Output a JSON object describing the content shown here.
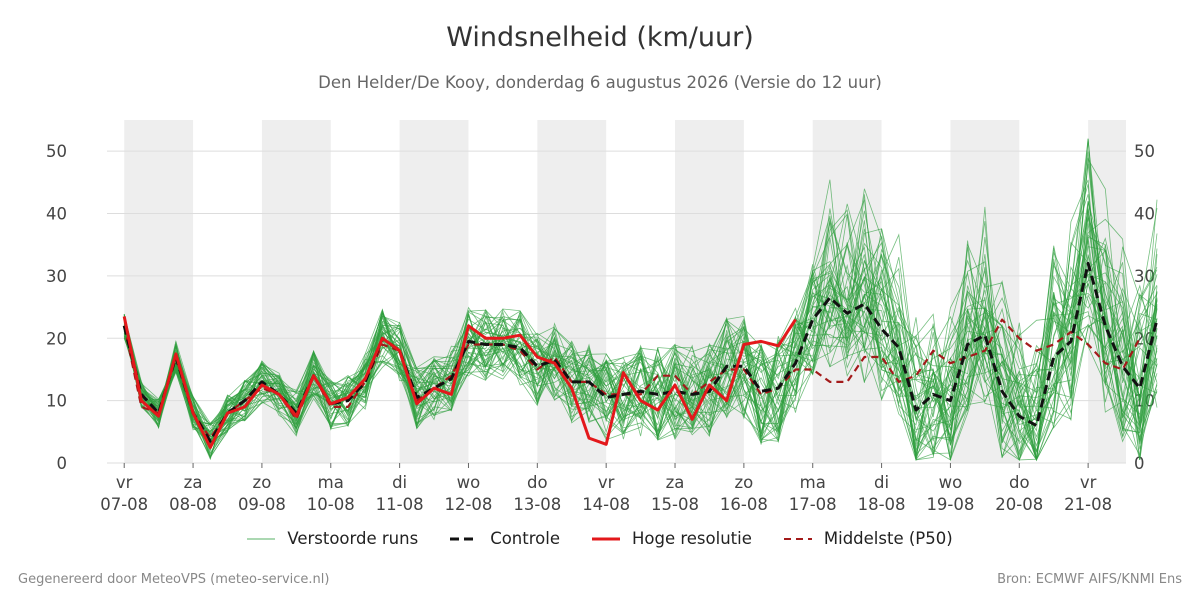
{
  "title": "Windsnelheid (km/uur)",
  "subtitle": "Den Helder/De Kooy, donderdag  6 augustus 2026 (Versie do 12 uur)",
  "footer": {
    "left": "Gegenereerd door MeteoVPS (meteo-service.nl)",
    "right": "Bron: ECMWF AIFS/KNMI Ens"
  },
  "colors": {
    "ensemble": "#2e9e3e",
    "control": "#111111",
    "hires": "#e3181b",
    "median": "#a31a1a",
    "shade": "#eeeeee",
    "grid": "#dddddd"
  },
  "legend": [
    {
      "key": "ensemble",
      "label": "Verstoorde runs",
      "style": "thin"
    },
    {
      "key": "control",
      "label": "Controle",
      "style": "dashed"
    },
    {
      "key": "hires",
      "label": "Hoge resolutie",
      "style": "solid"
    },
    {
      "key": "median",
      "label": "Middelste (P50)",
      "style": "dashed"
    }
  ],
  "chart_data": {
    "type": "line",
    "ylim": [
      0,
      55
    ],
    "yticks": [
      0,
      10,
      20,
      30,
      40,
      50
    ],
    "xlim": [
      -0.25,
      14.55
    ],
    "xticks": [
      {
        "day": "vr",
        "date": "07-08"
      },
      {
        "day": "za",
        "date": "08-08"
      },
      {
        "day": "zo",
        "date": "09-08"
      },
      {
        "day": "ma",
        "date": "10-08"
      },
      {
        "day": "di",
        "date": "11-08"
      },
      {
        "day": "wo",
        "date": "12-08"
      },
      {
        "day": "do",
        "date": "13-08"
      },
      {
        "day": "vr",
        "date": "14-08"
      },
      {
        "day": "za",
        "date": "15-08"
      },
      {
        "day": "zo",
        "date": "16-08"
      },
      {
        "day": "ma",
        "date": "17-08"
      },
      {
        "day": "di",
        "date": "18-08"
      },
      {
        "day": "wo",
        "date": "19-08"
      },
      {
        "day": "do",
        "date": "20-08"
      },
      {
        "day": "vr",
        "date": "21-08"
      }
    ],
    "grid": "horizontal",
    "x_step_days": 0.25,
    "series": [
      {
        "name": "Controle",
        "key": "control",
        "values": [
          23,
          9,
          8,
          17,
          8,
          4,
          8,
          10,
          12,
          11,
          7,
          14,
          9,
          9,
          13,
          20,
          18,
          10,
          12,
          14,
          19,
          19,
          19,
          18,
          15,
          17,
          13,
          13,
          11,
          11,
          11,
          14,
          14,
          11,
          13,
          15,
          15,
          11,
          12,
          15,
          15,
          13,
          13,
          17,
          17,
          13,
          14,
          18,
          16,
          17,
          18,
          23,
          20,
          18,
          19,
          21,
          19,
          16,
          15,
          20
        ]
      },
      {
        "name": "Hoge resolutie",
        "key": "hires",
        "values": [
          23.5,
          10,
          7.5,
          17.5,
          8,
          2.5,
          8,
          9,
          12.5,
          11,
          7.5,
          14,
          9.5,
          10.5,
          13.5,
          20,
          18,
          9.5,
          12,
          11,
          22,
          20,
          20,
          20.5,
          17,
          16,
          12,
          4,
          3,
          14.5,
          10,
          8.5,
          12.5,
          7,
          12.5,
          10,
          19,
          19.5,
          18.8,
          23
        ]
      },
      {
        "name": "Middelste (P50)",
        "key": "median",
        "values": [
          22,
          9,
          8,
          17,
          8,
          4,
          8,
          10,
          12,
          11,
          7,
          14,
          9,
          9,
          13,
          19,
          18,
          10,
          12,
          14,
          19,
          19,
          19,
          18,
          15,
          17,
          13,
          13,
          11,
          11,
          11,
          14,
          14,
          11,
          13,
          15,
          15,
          11,
          12,
          15,
          15,
          13,
          13,
          17,
          17,
          13,
          14,
          18,
          16,
          17,
          18,
          23,
          20,
          18,
          19,
          21,
          19,
          16,
          15,
          20
        ]
      },
      {
        "name": "Controle",
        "key": "control",
        "values": [
          22,
          11,
          8,
          17,
          8,
          3.5,
          8,
          10,
          13,
          11,
          8,
          14,
          9.5,
          10,
          13,
          20,
          18,
          10.5,
          12,
          13.5,
          19.5,
          19,
          19,
          18.5,
          15.5,
          16.5,
          13,
          13,
          10.5,
          11,
          11.5,
          11,
          11.5,
          11,
          11.5,
          15.5,
          15.5,
          11.5,
          12,
          16,
          23,
          26.5,
          24,
          25.5,
          21.5,
          18.5,
          8.5,
          11,
          10,
          19,
          20.5,
          11.5,
          7.5,
          6,
          17,
          19.5,
          32,
          22,
          15.5,
          12,
          23
        ]
      }
    ]
  }
}
